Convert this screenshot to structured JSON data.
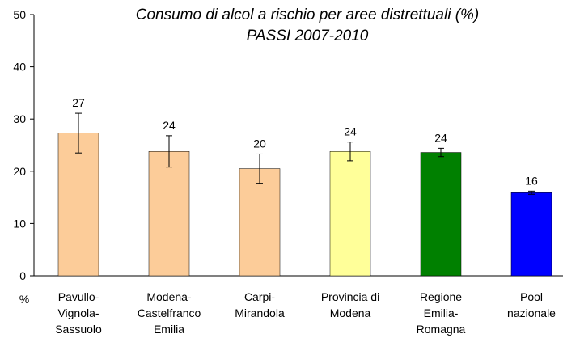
{
  "chart_data": {
    "type": "bar",
    "title": "Consumo di alcol a rischio per aree distrettuali  (%)",
    "subtitle": "PASSI 2007-2010",
    "y_label": "%",
    "categories": [
      "Pavullo-\nVignola-\nSassuolo",
      "Modena-\nCastelfranco\nEmilia",
      "Carpi-\nMirandola",
      "Provincia di\nModena",
      "Regione\nEmilia-\nRomagna",
      "Pool\nnazionale"
    ],
    "values": [
      27.3,
      23.8,
      20.5,
      23.8,
      23.6,
      15.9
    ],
    "value_labels": [
      "27",
      "24",
      "20",
      "24",
      "24",
      "16"
    ],
    "errors": [
      3.8,
      3.0,
      2.8,
      1.8,
      0.8,
      0.3
    ],
    "colors": [
      "#fccc99",
      "#fccc99",
      "#fccc99",
      "#ffff99",
      "#008000",
      "#0000ff"
    ],
    "ylim": [
      0,
      50
    ],
    "yticks": [
      0,
      10,
      20,
      30,
      40,
      50
    ],
    "grid": false
  }
}
